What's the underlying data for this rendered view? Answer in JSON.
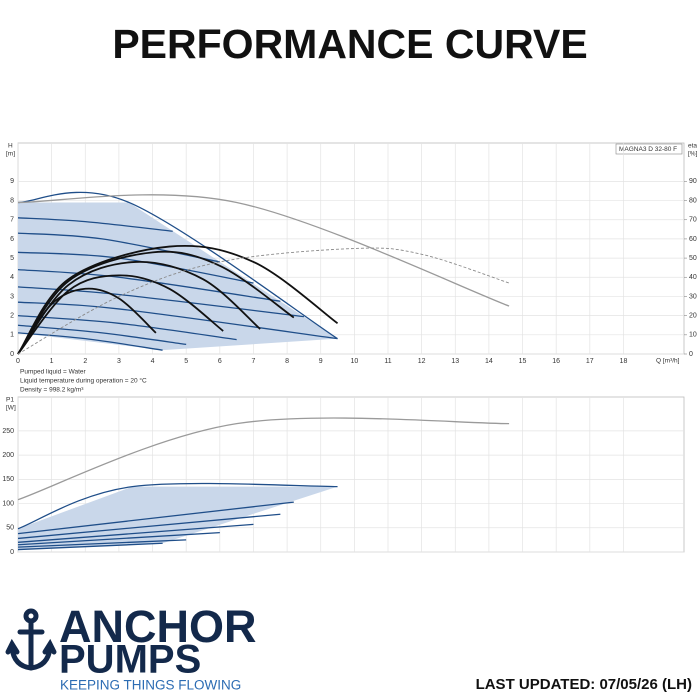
{
  "header": {
    "title": "PERFORMANCE CURVE"
  },
  "chart_data": [
    {
      "type": "line",
      "ylabel": "H",
      "ylabel_unit": "[m]",
      "y2label": "eta",
      "y2label_unit": "[%]",
      "xlabel": "Q [m³/h]",
      "model": "MAGNA3 D 32-80 F",
      "notes": [
        "Pumped liquid = Water",
        "Liquid temperature during operation = 20 °C",
        "Density = 998.2 kg/m³"
      ],
      "xlim": [
        0,
        19.8
      ],
      "xticks": [
        0,
        1,
        2,
        3,
        4,
        5,
        6,
        7,
        8,
        9,
        10,
        11,
        12,
        13,
        14,
        15,
        16,
        17,
        18
      ],
      "ylim": [
        0,
        11
      ],
      "yticks": [
        0,
        1,
        2,
        3,
        4,
        5,
        6,
        7,
        8,
        9
      ],
      "y2lim": [
        0,
        110
      ],
      "y2ticks": [
        0,
        10,
        20,
        30,
        40,
        50,
        60,
        70,
        80,
        90
      ],
      "grid": true,
      "series": [
        {
          "type": "area",
          "color": "#c9d7ea",
          "x": [
            0,
            3.3,
            9.5,
            4.3,
            0
          ],
          "values": [
            7.9,
            7.9,
            0.8,
            0.2,
            1.1
          ]
        },
        {
          "type": "line",
          "color": "#1f4e89",
          "x": [
            0,
            3.3,
            9.5
          ],
          "values": [
            7.9,
            7.9,
            0.8
          ]
        },
        {
          "type": "line",
          "color": "#1f4e89",
          "x": [
            0,
            2,
            4.6
          ],
          "values": [
            7.1,
            6.9,
            6.4
          ]
        },
        {
          "type": "line",
          "color": "#1f4e89",
          "x": [
            0,
            2.5,
            6
          ],
          "values": [
            6.3,
            6.0,
            4.8
          ]
        },
        {
          "type": "line",
          "color": "#1f4e89",
          "x": [
            0,
            3,
            7
          ],
          "values": [
            5.3,
            5.0,
            3.7
          ]
        },
        {
          "type": "line",
          "color": "#1f4e89",
          "x": [
            0,
            3,
            7.8
          ],
          "values": [
            4.4,
            4.0,
            2.75
          ]
        },
        {
          "type": "line",
          "color": "#1f4e89",
          "x": [
            0,
            3,
            8.5
          ],
          "values": [
            3.5,
            3.1,
            1.95
          ]
        },
        {
          "type": "line",
          "color": "#1f4e89",
          "x": [
            0,
            3,
            9.5
          ],
          "values": [
            2.7,
            2.35,
            0.8
          ]
        },
        {
          "type": "line",
          "color": "#1f4e89",
          "x": [
            0,
            3,
            6.5
          ],
          "values": [
            2.0,
            1.6,
            0.75
          ]
        },
        {
          "type": "line",
          "color": "#1f4e89",
          "x": [
            0,
            2.5,
            5
          ],
          "values": [
            1.5,
            1.1,
            0.5
          ]
        },
        {
          "type": "line",
          "color": "#1f4e89",
          "x": [
            0,
            2,
            4.3
          ],
          "values": [
            1.1,
            0.8,
            0.2
          ]
        },
        {
          "type": "line",
          "color": "#111111",
          "x": [
            0,
            1,
            2,
            3,
            4.1
          ],
          "values": [
            0,
            2.6,
            3.4,
            2.9,
            1.1
          ]
        },
        {
          "type": "line",
          "color": "#111111",
          "x": [
            0,
            1.5,
            3,
            4.5,
            6.1
          ],
          "values": [
            0,
            3.3,
            4.1,
            3.4,
            1.2
          ]
        },
        {
          "type": "line",
          "color": "#111111",
          "x": [
            0,
            1.5,
            3.5,
            5.5,
            7.2
          ],
          "values": [
            0,
            3.6,
            4.8,
            3.9,
            1.3
          ]
        },
        {
          "type": "line",
          "color": "#111111",
          "x": [
            0,
            1.5,
            4,
            6,
            8.2
          ],
          "values": [
            0,
            3.8,
            5.3,
            4.6,
            1.9
          ]
        },
        {
          "type": "line",
          "color": "#111111",
          "x": [
            0,
            1.5,
            4.5,
            7,
            9.5
          ],
          "values": [
            0,
            3.9,
            5.6,
            4.8,
            1.6
          ]
        },
        {
          "type": "line",
          "color": "#9a9a9a",
          "x": [
            0,
            6.5,
            14.6
          ],
          "values": [
            7.9,
            7.9,
            2.5
          ]
        },
        {
          "type": "line",
          "color": "#8a8a8a",
          "line_style": "dashed",
          "axis": "y2",
          "x": [
            0,
            3,
            6,
            10,
            12,
            14.6
          ],
          "values": [
            0,
            30,
            48,
            55,
            52,
            37
          ]
        }
      ]
    },
    {
      "type": "line",
      "ylabel": "P1",
      "ylabel_unit": "[W]",
      "xlim": [
        0,
        19.8
      ],
      "ylim": [
        0,
        320
      ],
      "yticks": [
        0,
        50,
        100,
        150,
        200,
        250
      ],
      "grid": true,
      "series": [
        {
          "type": "area",
          "color": "#c9d7ea",
          "x": [
            0,
            3.4,
            9.5,
            4.3,
            0
          ],
          "values": [
            48,
            135,
            135,
            18,
            5
          ]
        },
        {
          "type": "line",
          "color": "#1f4e89",
          "x": [
            0,
            3.4,
            9.5
          ],
          "values": [
            48,
            135,
            135
          ]
        },
        {
          "type": "line",
          "color": "#1f4e89",
          "x": [
            0,
            8.2
          ],
          "values": [
            38,
            103
          ]
        },
        {
          "type": "line",
          "color": "#1f4e89",
          "x": [
            0,
            7.8
          ],
          "values": [
            28,
            78
          ]
        },
        {
          "type": "line",
          "color": "#1f4e89",
          "x": [
            0,
            7
          ],
          "values": [
            20,
            57
          ]
        },
        {
          "type": "line",
          "color": "#1f4e89",
          "x": [
            0,
            6
          ],
          "values": [
            15,
            40
          ]
        },
        {
          "type": "line",
          "color": "#1f4e89",
          "x": [
            0,
            5
          ],
          "values": [
            10,
            25
          ]
        },
        {
          "type": "line",
          "color": "#1f4e89",
          "x": [
            0,
            4.3
          ],
          "values": [
            5,
            18
          ]
        },
        {
          "type": "line",
          "color": "#9a9a9a",
          "x": [
            0,
            6.5,
            14.6
          ],
          "values": [
            108,
            265,
            265
          ]
        }
      ]
    }
  ],
  "logo": {
    "line1": "ANCHOR",
    "line2": "PUMPS",
    "tagline": "KEEPING THINGS FLOWING"
  },
  "footer": {
    "updated": "LAST UPDATED: 07/05/26 (LH)"
  }
}
